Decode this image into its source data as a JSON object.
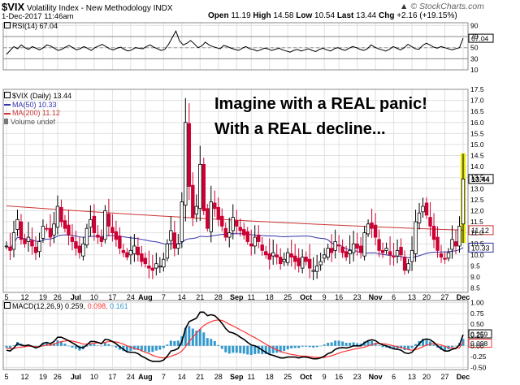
{
  "header": {
    "symbol": "$VIX",
    "name": "Volatility Index - New Methodology",
    "exchange": "INDX",
    "datetime": "1-Dec-2017 11:46am",
    "open_label": "Open",
    "open": "11.19",
    "high_label": "High",
    "high": "14.58",
    "low_label": "Low",
    "low": "10.54",
    "last_label": "Last",
    "last": "13.44",
    "chg_label": "Chg",
    "chg": "+2.16 (+19.15%)",
    "watermark": "© StockCharts.com",
    "watermark_icon": "up-arrow-icon"
  },
  "annotation": {
    "line1": "Imagine with a REAL panic!",
    "line2": "With a REAL decline..."
  },
  "colors": {
    "up_candle": "#000000",
    "down_candle": "#cc0033",
    "ma50": "#3333aa",
    "ma200": "#cc3333",
    "rsi": "#000000",
    "macd": "#000000",
    "signal": "#ff3333",
    "histogram": "#3399cc",
    "highlight": "#e6e600",
    "last_tag": "#ffffff"
  },
  "legends": {
    "rsi": "RSI(14) 67.04",
    "price_title": "$VIX (Daily) 13.44",
    "ma50": "MA(50) 10.33",
    "ma200": "MA(200) 11.12",
    "volume": "Volume undef",
    "macd_name": "MACD(12,26,9)",
    "macd_v1": "0.259,",
    "macd_v2": "0.098,",
    "macd_v3": "0.161"
  },
  "chart_data": [
    {
      "type": "line",
      "name": "RSI(14)",
      "ylim": [
        10,
        95
      ],
      "ticks": [
        "90",
        "70",
        "50",
        "30",
        "10"
      ],
      "last_value": "67.04",
      "x_range": [
        "2017-06-01",
        "2017-12-01"
      ],
      "values": [
        38,
        45,
        52,
        48,
        55,
        50,
        47,
        52,
        49,
        46,
        50,
        55,
        53,
        49,
        45,
        47,
        51,
        54,
        50,
        46,
        48,
        52,
        49,
        45,
        50,
        53,
        56,
        52,
        48,
        46,
        49,
        51,
        47,
        44,
        46,
        50,
        49,
        48,
        52,
        55,
        51,
        48,
        45,
        47,
        56,
        68,
        80,
        62,
        55,
        58,
        63,
        57,
        50,
        53,
        60,
        55,
        52,
        50,
        48,
        54,
        52,
        49,
        47,
        45,
        49,
        52,
        48,
        47,
        44,
        46,
        49,
        48,
        45,
        47,
        49,
        46,
        44,
        42,
        45,
        47,
        44,
        46,
        48,
        45,
        43,
        47,
        49,
        46,
        44,
        48,
        50,
        47,
        45,
        49,
        52,
        50,
        47,
        45,
        48,
        55,
        51,
        48,
        46,
        44,
        47,
        52,
        49,
        46,
        50,
        56,
        52,
        48,
        47,
        54,
        58,
        55,
        51,
        49,
        52,
        50,
        48,
        46,
        48,
        50,
        67
      ]
    },
    {
      "type": "candlestick",
      "name": "$VIX (Daily)",
      "ylim": [
        8.3,
        17.5
      ],
      "ticks": [
        "17.5",
        "17.0",
        "16.5",
        "16.0",
        "15.5",
        "15.0",
        "14.5",
        "14.0",
        "13.5",
        "13.0",
        "12.5",
        "12.0",
        "11.5",
        "11.0",
        "10.5",
        "10.0",
        "9.5",
        "9.0",
        "8.5"
      ],
      "last_value": "13.44",
      "ma50_last": "10.33",
      "ma200_last": "11.12",
      "x_tick_labels": [
        "5",
        "12",
        "19",
        "26",
        "Jul",
        "10",
        "17",
        "24",
        "Aug",
        "7",
        "14",
        "21",
        "28",
        "Sep",
        "11",
        "18",
        "25",
        "Oct",
        "9",
        "16",
        "23",
        "Nov",
        "6",
        "13",
        "20",
        "27",
        "Dec"
      ],
      "close": [
        10.4,
        10.2,
        11.0,
        11.6,
        10.7,
        10.5,
        10.8,
        10.4,
        10.1,
        10.6,
        11.3,
        11.2,
        10.8,
        11.4,
        12.2,
        11.5,
        11.2,
        10.9,
        10.6,
        10.3,
        10.1,
        10.5,
        11.2,
        11.6,
        11.0,
        10.8,
        10.6,
        12.0,
        11.3,
        11.0,
        10.7,
        10.3,
        10.1,
        9.9,
        10.2,
        10.4,
        10.0,
        9.7,
        9.6,
        9.4,
        9.3,
        9.6,
        9.5,
        9.8,
        10.5,
        11.1,
        10.3,
        10.5,
        12.4,
        16.0,
        13.1,
        11.7,
        12.2,
        14.1,
        12.0,
        11.2,
        12.4,
        12.1,
        11.6,
        11.3,
        10.8,
        11.0,
        11.7,
        11.3,
        11.1,
        10.9,
        10.6,
        10.4,
        10.8,
        10.6,
        10.2,
        10.0,
        9.8,
        10.1,
        9.9,
        9.6,
        9.8,
        10.1,
        9.9,
        9.7,
        9.5,
        9.9,
        9.7,
        9.4,
        9.3,
        9.5,
        9.7,
        10.0,
        10.3,
        10.1,
        10.6,
        10.4,
        10.1,
        9.9,
        10.2,
        10.5,
        10.3,
        10.1,
        11.0,
        11.4,
        11.2,
        10.8,
        10.2,
        10.1,
        10.3,
        10.0,
        9.9,
        10.2,
        10.0,
        9.3,
        9.6,
        10.2,
        11.5,
        11.9,
        12.2,
        11.8,
        11.3,
        10.7,
        10.2,
        9.9,
        9.8,
        10.1,
        10.7,
        10.4,
        11.3,
        13.44
      ]
    },
    {
      "type": "line",
      "name": "MACD(12,26,9)",
      "ylim": [
        -0.55,
        1.05
      ],
      "ticks": [
        "1.00",
        "0.75",
        "0.50",
        "0.25",
        "0.00",
        "-0.25",
        "-0.50"
      ],
      "last_values": [
        "0.259",
        "0.098",
        "0.161"
      ],
      "macd": [
        -0.1,
        -0.12,
        -0.05,
        0.05,
        0.02,
        0.0,
        0.02,
        -0.01,
        -0.05,
        -0.02,
        0.06,
        0.08,
        0.05,
        0.1,
        0.2,
        0.2,
        0.16,
        0.12,
        0.07,
        0.02,
        -0.04,
        -0.04,
        0.02,
        0.1,
        0.1,
        0.08,
        0.05,
        0.15,
        0.14,
        0.1,
        0.05,
        -0.02,
        -0.08,
        -0.14,
        -0.15,
        -0.15,
        -0.18,
        -0.24,
        -0.28,
        -0.33,
        -0.36,
        -0.36,
        -0.36,
        -0.33,
        -0.24,
        -0.12,
        -0.1,
        -0.06,
        0.1,
        0.4,
        0.56,
        0.6,
        0.64,
        0.78,
        0.78,
        0.7,
        0.72,
        0.7,
        0.62,
        0.52,
        0.4,
        0.32,
        0.3,
        0.26,
        0.2,
        0.15,
        0.08,
        0.02,
        0.0,
        -0.04,
        -0.1,
        -0.15,
        -0.2,
        -0.22,
        -0.25,
        -0.28,
        -0.28,
        -0.26,
        -0.26,
        -0.26,
        -0.28,
        -0.26,
        -0.26,
        -0.28,
        -0.3,
        -0.3,
        -0.28,
        -0.24,
        -0.18,
        -0.15,
        -0.08,
        -0.05,
        -0.04,
        -0.05,
        -0.03,
        0.0,
        0.0,
        0.0,
        0.07,
        0.12,
        0.14,
        0.12,
        0.06,
        0.02,
        0.0,
        -0.04,
        -0.07,
        -0.08,
        -0.1,
        -0.16,
        -0.18,
        -0.15,
        -0.05,
        0.05,
        0.14,
        0.16,
        0.14,
        0.08,
        0.0,
        -0.07,
        -0.12,
        -0.12,
        -0.08,
        -0.06,
        0.02,
        0.259
      ],
      "signal": [
        -0.05,
        -0.06,
        -0.06,
        -0.04,
        -0.03,
        -0.02,
        -0.01,
        -0.01,
        -0.02,
        -0.02,
        0.0,
        0.02,
        0.02,
        0.04,
        0.07,
        0.1,
        0.11,
        0.12,
        0.11,
        0.09,
        0.07,
        0.04,
        0.04,
        0.05,
        0.06,
        0.07,
        0.06,
        0.08,
        0.1,
        0.1,
        0.09,
        0.07,
        0.04,
        0.0,
        -0.03,
        -0.06,
        -0.08,
        -0.11,
        -0.15,
        -0.18,
        -0.22,
        -0.25,
        -0.27,
        -0.28,
        -0.27,
        -0.24,
        -0.21,
        -0.18,
        -0.12,
        -0.02,
        0.1,
        0.2,
        0.29,
        0.39,
        0.47,
        0.52,
        0.56,
        0.59,
        0.6,
        0.59,
        0.55,
        0.5,
        0.46,
        0.42,
        0.37,
        0.33,
        0.28,
        0.23,
        0.19,
        0.14,
        0.09,
        0.04,
        -0.01,
        -0.05,
        -0.09,
        -0.13,
        -0.16,
        -0.18,
        -0.2,
        -0.21,
        -0.23,
        -0.24,
        -0.24,
        -0.25,
        -0.26,
        -0.27,
        -0.27,
        -0.27,
        -0.25,
        -0.23,
        -0.2,
        -0.17,
        -0.14,
        -0.12,
        -0.1,
        -0.08,
        -0.06,
        -0.05,
        -0.03,
        0.0,
        0.03,
        0.05,
        0.05,
        0.05,
        0.04,
        0.02,
        0.0,
        -0.02,
        -0.04,
        -0.06,
        -0.09,
        -0.1,
        -0.09,
        -0.06,
        -0.02,
        0.02,
        0.04,
        0.05,
        0.04,
        0.02,
        -0.01,
        -0.04,
        -0.05,
        -0.05,
        -0.05,
        0.098
      ]
    }
  ]
}
